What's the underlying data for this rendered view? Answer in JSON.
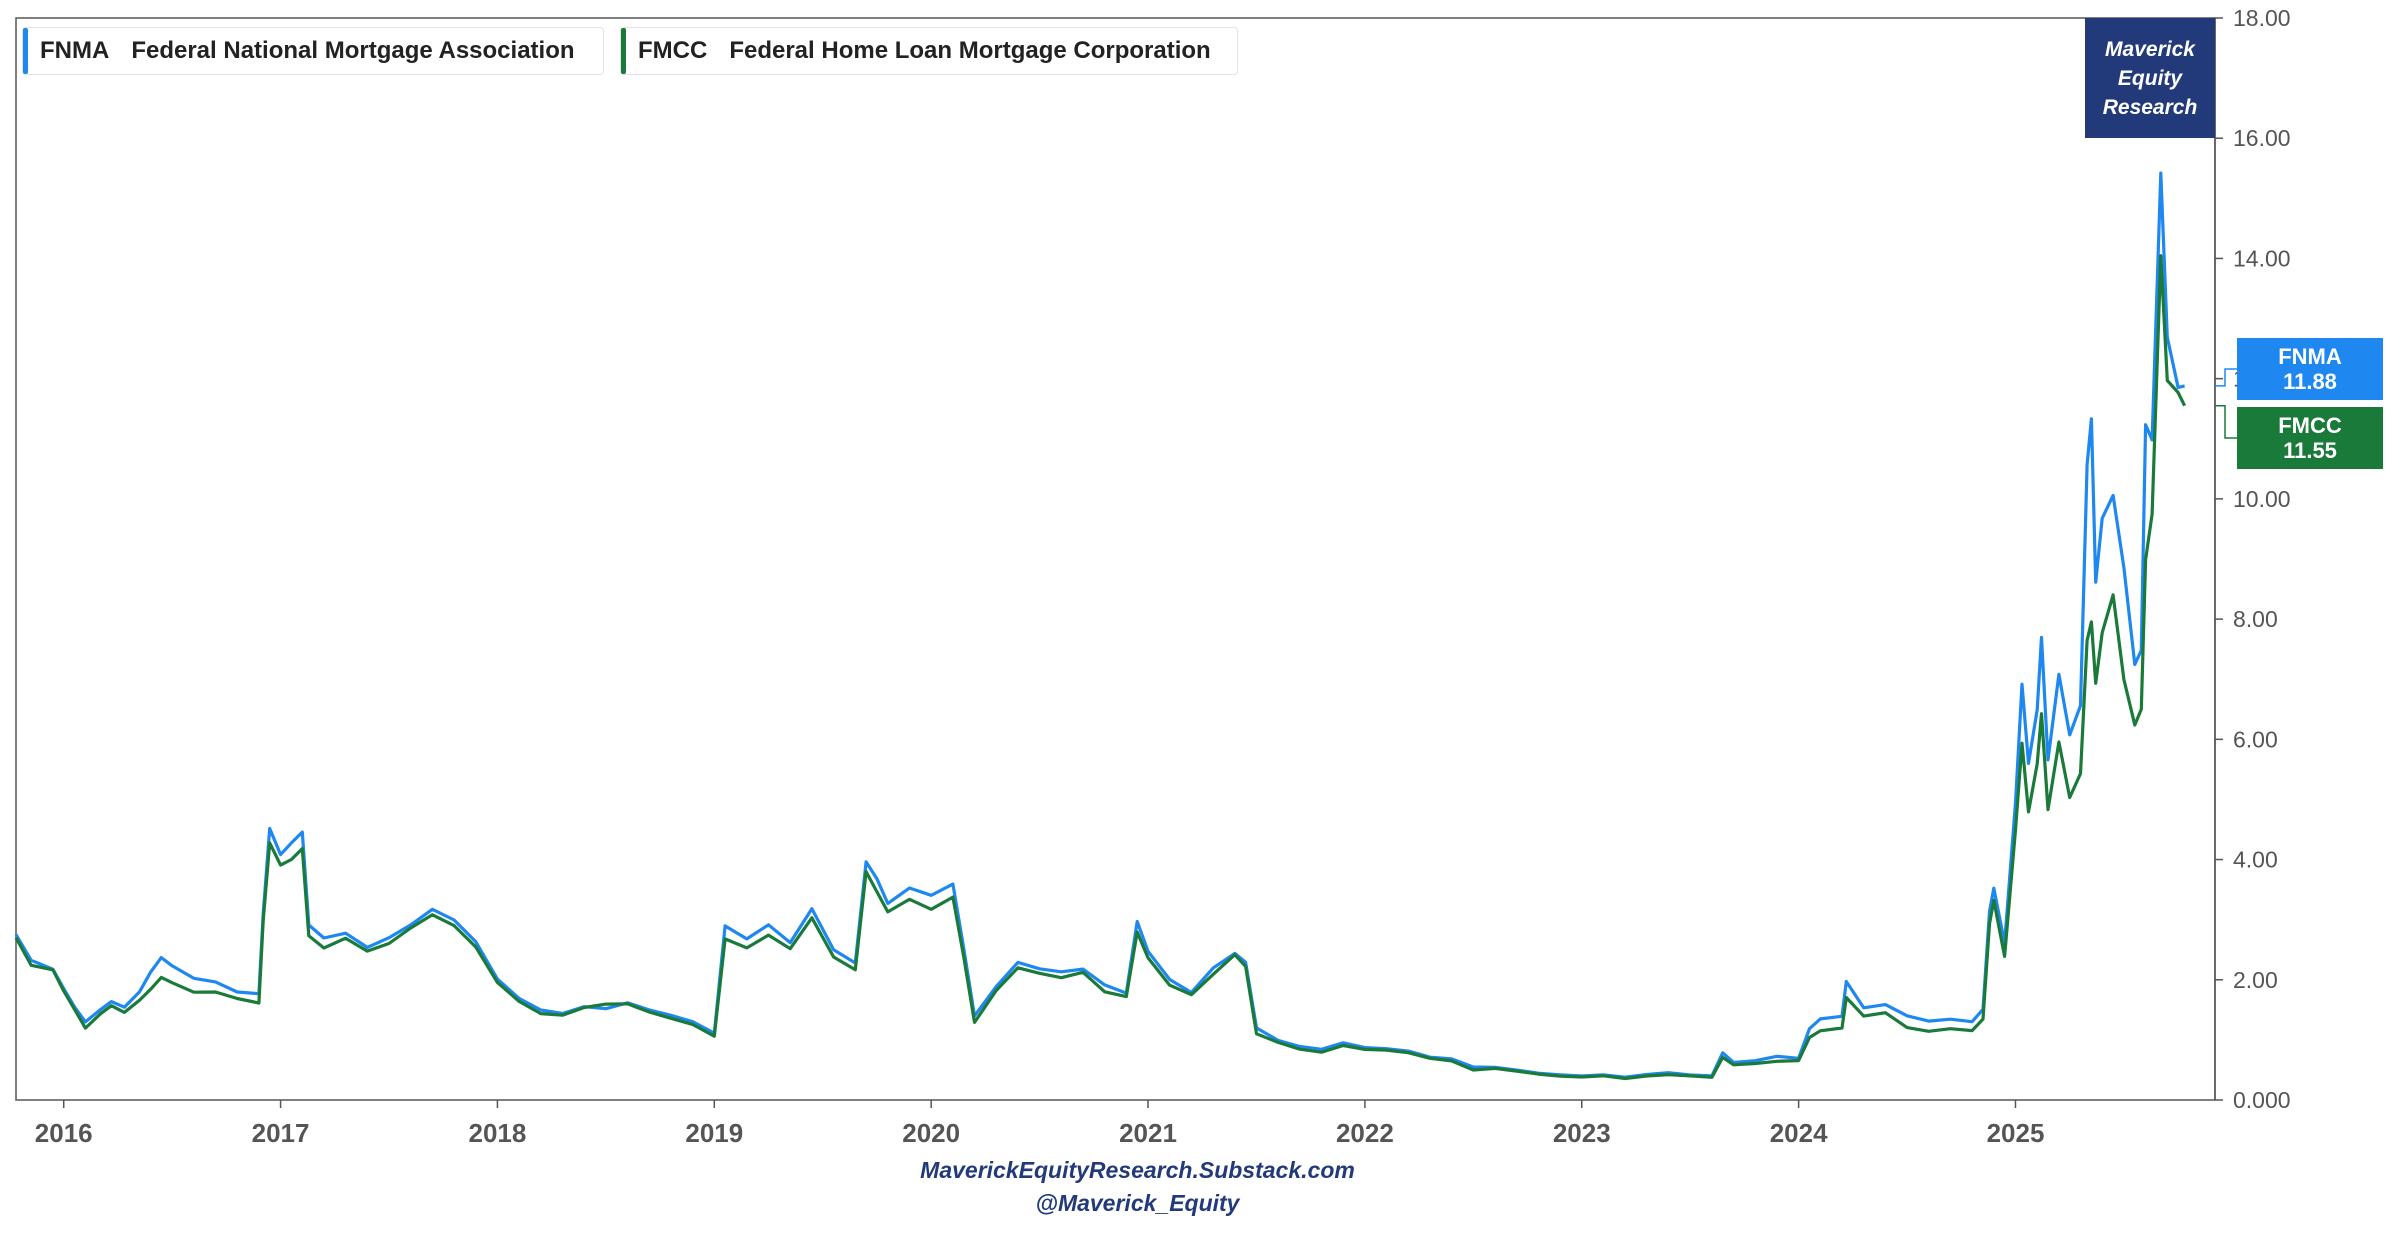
{
  "legend": [
    {
      "symbol": "FNMA",
      "name": "Federal National Mortgage Association",
      "color": "#1e88f0"
    },
    {
      "symbol": "FMCC",
      "name": "Federal Home Loan Mortgage Corporation",
      "color": "#1a7a3a"
    }
  ],
  "brand": {
    "line1": "Maverick",
    "line2": "Equity",
    "line3": "Research",
    "color": "#233a7a"
  },
  "last_values": {
    "fnma": "11.88",
    "fmcc": "11.55"
  },
  "footer": {
    "site": "MaverickEquityResearch.Substack.com",
    "handle": "@Maverick_Equity"
  },
  "chart_data": {
    "type": "line",
    "x_ticks": [
      "2016",
      "2017",
      "2018",
      "2019",
      "2020",
      "2021",
      "2022",
      "2023",
      "2024",
      "2025"
    ],
    "y_ticks": [
      "0.000",
      "2.00",
      "4.00",
      "6.00",
      "8.00",
      "10.00",
      "12.00",
      "14.00",
      "16.00",
      "18.00"
    ],
    "ylim": [
      0,
      18
    ],
    "xlim": [
      2015.78,
      2025.92
    ],
    "y_axis_position": "right",
    "grid": false,
    "legend_position": "top-left",
    "series": [
      {
        "name": "FNMA",
        "color": "#1e88f0",
        "points": [
          [
            2015.78,
            2.75
          ],
          [
            2015.85,
            2.3
          ],
          [
            2015.95,
            2.2
          ],
          [
            2016.0,
            1.85
          ],
          [
            2016.05,
            1.55
          ],
          [
            2016.1,
            1.3
          ],
          [
            2016.17,
            1.5
          ],
          [
            2016.22,
            1.65
          ],
          [
            2016.28,
            1.55
          ],
          [
            2016.35,
            1.8
          ],
          [
            2016.4,
            2.1
          ],
          [
            2016.45,
            2.35
          ],
          [
            2016.5,
            2.25
          ],
          [
            2016.6,
            2.0
          ],
          [
            2016.7,
            1.95
          ],
          [
            2016.8,
            1.8
          ],
          [
            2016.9,
            1.75
          ],
          [
            2016.92,
            3.1
          ],
          [
            2016.95,
            4.5
          ],
          [
            2017.0,
            4.1
          ],
          [
            2017.05,
            4.25
          ],
          [
            2017.1,
            4.45
          ],
          [
            2017.13,
            2.9
          ],
          [
            2017.2,
            2.7
          ],
          [
            2017.3,
            2.8
          ],
          [
            2017.4,
            2.55
          ],
          [
            2017.5,
            2.7
          ],
          [
            2017.6,
            2.95
          ],
          [
            2017.7,
            3.2
          ],
          [
            2017.8,
            3.0
          ],
          [
            2017.9,
            2.6
          ],
          [
            2018.0,
            2.0
          ],
          [
            2018.1,
            1.7
          ],
          [
            2018.2,
            1.5
          ],
          [
            2018.3,
            1.45
          ],
          [
            2018.4,
            1.55
          ],
          [
            2018.5,
            1.5
          ],
          [
            2018.6,
            1.6
          ],
          [
            2018.7,
            1.5
          ],
          [
            2018.8,
            1.4
          ],
          [
            2018.9,
            1.3
          ],
          [
            2019.0,
            1.1
          ],
          [
            2019.05,
            2.9
          ],
          [
            2019.15,
            2.7
          ],
          [
            2019.25,
            2.9
          ],
          [
            2019.35,
            2.6
          ],
          [
            2019.45,
            3.2
          ],
          [
            2019.55,
            2.5
          ],
          [
            2019.65,
            2.3
          ],
          [
            2019.7,
            4.0
          ],
          [
            2019.75,
            3.7
          ],
          [
            2019.8,
            3.3
          ],
          [
            2019.9,
            3.5
          ],
          [
            2020.0,
            3.4
          ],
          [
            2020.1,
            3.6
          ],
          [
            2020.15,
            2.5
          ],
          [
            2020.2,
            1.4
          ],
          [
            2020.3,
            1.9
          ],
          [
            2020.4,
            2.3
          ],
          [
            2020.5,
            2.2
          ],
          [
            2020.6,
            2.15
          ],
          [
            2020.7,
            2.2
          ],
          [
            2020.8,
            1.9
          ],
          [
            2020.9,
            1.8
          ],
          [
            2020.95,
            3.0
          ],
          [
            2021.0,
            2.5
          ],
          [
            2021.1,
            2.0
          ],
          [
            2021.2,
            1.8
          ],
          [
            2021.3,
            2.2
          ],
          [
            2021.4,
            2.45
          ],
          [
            2021.45,
            2.3
          ],
          [
            2021.5,
            1.2
          ],
          [
            2021.6,
            1.0
          ],
          [
            2021.7,
            0.9
          ],
          [
            2021.8,
            0.85
          ],
          [
            2021.9,
            0.95
          ],
          [
            2022.0,
            0.88
          ],
          [
            2022.1,
            0.85
          ],
          [
            2022.2,
            0.82
          ],
          [
            2022.3,
            0.72
          ],
          [
            2022.4,
            0.68
          ],
          [
            2022.5,
            0.55
          ],
          [
            2022.6,
            0.55
          ],
          [
            2022.7,
            0.5
          ],
          [
            2022.8,
            0.45
          ],
          [
            2022.9,
            0.42
          ],
          [
            2023.0,
            0.4
          ],
          [
            2023.1,
            0.42
          ],
          [
            2023.2,
            0.38
          ],
          [
            2023.3,
            0.42
          ],
          [
            2023.4,
            0.45
          ],
          [
            2023.5,
            0.42
          ],
          [
            2023.6,
            0.4
          ],
          [
            2023.65,
            0.78
          ],
          [
            2023.7,
            0.62
          ],
          [
            2023.8,
            0.65
          ],
          [
            2023.9,
            0.72
          ],
          [
            2024.0,
            0.7
          ],
          [
            2024.05,
            1.2
          ],
          [
            2024.1,
            1.35
          ],
          [
            2024.2,
            1.4
          ],
          [
            2024.22,
            1.95
          ],
          [
            2024.3,
            1.55
          ],
          [
            2024.4,
            1.6
          ],
          [
            2024.5,
            1.4
          ],
          [
            2024.6,
            1.3
          ],
          [
            2024.7,
            1.35
          ],
          [
            2024.8,
            1.3
          ],
          [
            2024.85,
            1.5
          ],
          [
            2024.88,
            3.1
          ],
          [
            2024.9,
            3.55
          ],
          [
            2024.95,
            2.6
          ],
          [
            2025.0,
            5.0
          ],
          [
            2025.03,
            7.0
          ],
          [
            2025.06,
            5.6
          ],
          [
            2025.1,
            6.5
          ],
          [
            2025.12,
            7.7
          ],
          [
            2025.15,
            5.6
          ],
          [
            2025.2,
            7.1
          ],
          [
            2025.25,
            6.0
          ],
          [
            2025.3,
            6.6
          ],
          [
            2025.33,
            10.5
          ],
          [
            2025.35,
            11.2
          ],
          [
            2025.37,
            8.7
          ],
          [
            2025.4,
            9.8
          ],
          [
            2025.45,
            10.0
          ],
          [
            2025.5,
            8.9
          ],
          [
            2025.55,
            7.3
          ],
          [
            2025.58,
            7.4
          ],
          [
            2025.6,
            11.3
          ],
          [
            2025.63,
            11.0
          ],
          [
            2025.67,
            15.3
          ],
          [
            2025.7,
            12.6
          ],
          [
            2025.75,
            12.0
          ],
          [
            2025.78,
            11.88
          ]
        ]
      },
      {
        "name": "FMCC",
        "color": "#1a7a3a",
        "points": [
          [
            2015.78,
            2.7
          ],
          [
            2015.85,
            2.25
          ],
          [
            2015.95,
            2.15
          ],
          [
            2016.0,
            1.8
          ],
          [
            2016.05,
            1.5
          ],
          [
            2016.1,
            1.2
          ],
          [
            2016.17,
            1.45
          ],
          [
            2016.22,
            1.55
          ],
          [
            2016.28,
            1.45
          ],
          [
            2016.35,
            1.65
          ],
          [
            2016.4,
            1.85
          ],
          [
            2016.45,
            2.05
          ],
          [
            2016.5,
            1.95
          ],
          [
            2016.6,
            1.8
          ],
          [
            2016.7,
            1.8
          ],
          [
            2016.8,
            1.7
          ],
          [
            2016.9,
            1.6
          ],
          [
            2016.92,
            3.0
          ],
          [
            2016.95,
            4.3
          ],
          [
            2017.0,
            3.9
          ],
          [
            2017.05,
            4.05
          ],
          [
            2017.1,
            4.2
          ],
          [
            2017.13,
            2.75
          ],
          [
            2017.2,
            2.55
          ],
          [
            2017.3,
            2.7
          ],
          [
            2017.4,
            2.45
          ],
          [
            2017.5,
            2.6
          ],
          [
            2017.6,
            2.85
          ],
          [
            2017.7,
            3.1
          ],
          [
            2017.8,
            2.9
          ],
          [
            2017.9,
            2.55
          ],
          [
            2018.0,
            1.95
          ],
          [
            2018.1,
            1.65
          ],
          [
            2018.2,
            1.45
          ],
          [
            2018.3,
            1.4
          ],
          [
            2018.4,
            1.55
          ],
          [
            2018.5,
            1.6
          ],
          [
            2018.6,
            1.6
          ],
          [
            2018.7,
            1.45
          ],
          [
            2018.8,
            1.35
          ],
          [
            2018.9,
            1.25
          ],
          [
            2019.0,
            1.05
          ],
          [
            2019.05,
            2.7
          ],
          [
            2019.15,
            2.55
          ],
          [
            2019.25,
            2.75
          ],
          [
            2019.35,
            2.5
          ],
          [
            2019.45,
            3.0
          ],
          [
            2019.55,
            2.4
          ],
          [
            2019.65,
            2.15
          ],
          [
            2019.7,
            3.8
          ],
          [
            2019.75,
            3.5
          ],
          [
            2019.8,
            3.1
          ],
          [
            2019.9,
            3.3
          ],
          [
            2020.0,
            3.2
          ],
          [
            2020.1,
            3.4
          ],
          [
            2020.15,
            2.4
          ],
          [
            2020.2,
            1.3
          ],
          [
            2020.3,
            1.8
          ],
          [
            2020.4,
            2.2
          ],
          [
            2020.5,
            2.1
          ],
          [
            2020.6,
            2.05
          ],
          [
            2020.7,
            2.1
          ],
          [
            2020.8,
            1.8
          ],
          [
            2020.9,
            1.7
          ],
          [
            2020.95,
            2.8
          ],
          [
            2021.0,
            2.35
          ],
          [
            2021.1,
            1.9
          ],
          [
            2021.2,
            1.75
          ],
          [
            2021.3,
            2.1
          ],
          [
            2021.4,
            2.4
          ],
          [
            2021.45,
            2.25
          ],
          [
            2021.5,
            1.1
          ],
          [
            2021.6,
            0.95
          ],
          [
            2021.7,
            0.85
          ],
          [
            2021.8,
            0.8
          ],
          [
            2021.9,
            0.9
          ],
          [
            2022.0,
            0.85
          ],
          [
            2022.1,
            0.82
          ],
          [
            2022.2,
            0.78
          ],
          [
            2022.3,
            0.7
          ],
          [
            2022.4,
            0.65
          ],
          [
            2022.5,
            0.5
          ],
          [
            2022.6,
            0.52
          ],
          [
            2022.7,
            0.48
          ],
          [
            2022.8,
            0.43
          ],
          [
            2022.9,
            0.4
          ],
          [
            2023.0,
            0.38
          ],
          [
            2023.1,
            0.4
          ],
          [
            2023.2,
            0.36
          ],
          [
            2023.3,
            0.4
          ],
          [
            2023.4,
            0.42
          ],
          [
            2023.5,
            0.4
          ],
          [
            2023.6,
            0.38
          ],
          [
            2023.65,
            0.7
          ],
          [
            2023.7,
            0.58
          ],
          [
            2023.8,
            0.6
          ],
          [
            2023.9,
            0.65
          ],
          [
            2024.0,
            0.65
          ],
          [
            2024.05,
            1.05
          ],
          [
            2024.1,
            1.15
          ],
          [
            2024.2,
            1.2
          ],
          [
            2024.22,
            1.7
          ],
          [
            2024.3,
            1.4
          ],
          [
            2024.4,
            1.45
          ],
          [
            2024.5,
            1.2
          ],
          [
            2024.6,
            1.15
          ],
          [
            2024.7,
            1.2
          ],
          [
            2024.8,
            1.15
          ],
          [
            2024.85,
            1.35
          ],
          [
            2024.88,
            2.9
          ],
          [
            2024.9,
            3.3
          ],
          [
            2024.95,
            2.4
          ],
          [
            2025.0,
            4.5
          ],
          [
            2025.03,
            6.0
          ],
          [
            2025.06,
            4.8
          ],
          [
            2025.1,
            5.6
          ],
          [
            2025.12,
            6.4
          ],
          [
            2025.15,
            4.8
          ],
          [
            2025.2,
            6.0
          ],
          [
            2025.25,
            5.0
          ],
          [
            2025.3,
            5.4
          ],
          [
            2025.33,
            7.6
          ],
          [
            2025.35,
            8.0
          ],
          [
            2025.37,
            6.9
          ],
          [
            2025.4,
            7.8
          ],
          [
            2025.45,
            8.3
          ],
          [
            2025.5,
            7.0
          ],
          [
            2025.55,
            6.3
          ],
          [
            2025.58,
            6.5
          ],
          [
            2025.6,
            9.1
          ],
          [
            2025.63,
            9.8
          ],
          [
            2025.67,
            14.1
          ],
          [
            2025.7,
            12.0
          ],
          [
            2025.75,
            11.8
          ],
          [
            2025.78,
            11.55
          ]
        ]
      }
    ]
  }
}
